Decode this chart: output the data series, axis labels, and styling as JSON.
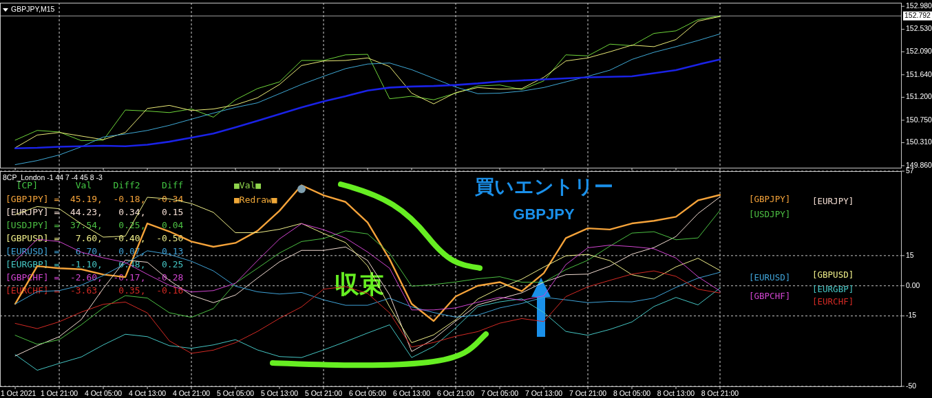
{
  "chart_data": [
    {
      "type": "line",
      "title": "GBPJPY,M15",
      "tick_labels": "y",
      "categories": [
        "1 Oct 2021",
        null,
        "1 Oct 21:00",
        null,
        "4 Oct 05:00",
        null,
        "4 Oct 13:00",
        null,
        "4 Oct 21:00",
        null,
        "5 Oct 05:00",
        null,
        "5 Oct 13:00",
        null,
        "5 Oct 21:00",
        null,
        "6 Oct 05:00",
        null,
        "6 Oct 13:00",
        null,
        "6 Oct 21:00",
        null,
        "7 Oct 05:00",
        null,
        "7 Oct 13:00",
        null,
        "7 Oct 21:00",
        null,
        "8 Oct 05:00",
        null,
        "8 Oct 13:00",
        null,
        "8 Oct 21:00",
        null,
        null,
        null,
        null,
        null,
        null,
        null,
        null
      ],
      "ylim": [
        149.82,
        153.05
      ],
      "yticks": [
        {
          "value": 152.98,
          "label": "152.980"
        },
        {
          "value": 152.53,
          "label": "152.530"
        },
        {
          "value": 152.09,
          "label": "152.090"
        },
        {
          "value": 151.64,
          "label": "151.640"
        },
        {
          "value": 151.2,
          "label": "151.200"
        },
        {
          "value": 150.75,
          "label": "150.750"
        },
        {
          "value": 150.31,
          "label": "150.310"
        },
        {
          "value": 149.86,
          "label": "149.860"
        }
      ],
      "ref_lines": [
        {
          "axis": "y",
          "value": 152.792,
          "label": "152.792",
          "color": "#a0a0a0"
        },
        {
          "axis": "x",
          "value": "1 Oct 21:00",
          "color": "#d0d0d0",
          "line_style": "dashed"
        },
        {
          "axis": "x",
          "value": "4 Oct 21:00",
          "color": "#d0d0d0",
          "line_style": "dashed"
        },
        {
          "axis": "x",
          "value": "5 Oct 21:00",
          "color": "#d0d0d0",
          "line_style": "dashed"
        },
        {
          "axis": "x",
          "value": "6 Oct 21:00",
          "color": "#d0d0d0",
          "line_style": "dashed"
        },
        {
          "axis": "x",
          "value": "7 Oct 21:00",
          "color": "#d0d0d0",
          "line_style": "dashed"
        },
        {
          "axis": "x",
          "value": "8 Oct 21:00",
          "color": "#d0d0d0",
          "line_style": "dashed"
        }
      ],
      "series": [
        {
          "color": "#6fd63a",
          "values": [
            150.36,
            150.55,
            150.52,
            150.35,
            150.36,
            150.95,
            150.93,
            150.9,
            150.97,
            150.81,
            151.15,
            151.37,
            151.5,
            151.92,
            151.92,
            152.03,
            152.04,
            151.17,
            151.22,
            151.15,
            151.28,
            151.42,
            151.44,
            151.35,
            151.52,
            152.03,
            152.01,
            152.24,
            152.21,
            152.45,
            152.5,
            152.72,
            152.79,
            null,
            null,
            null,
            null,
            null,
            null,
            null,
            null
          ]
        },
        {
          "color": "#ecec78",
          "values": [
            150.21,
            150.46,
            150.51,
            150.44,
            150.37,
            150.51,
            150.98,
            151.04,
            150.94,
            150.97,
            151.05,
            151.19,
            151.45,
            151.82,
            151.91,
            151.92,
            151.97,
            151.8,
            151.28,
            151.07,
            151.29,
            151.39,
            151.36,
            151.37,
            151.59,
            151.91,
            151.97,
            152.09,
            152.22,
            152.19,
            152.33,
            152.69,
            152.78,
            null,
            null,
            null,
            null,
            null,
            null,
            null,
            null
          ]
        },
        {
          "color": "#3fa9d6",
          "values": [
            149.88,
            149.96,
            150.07,
            150.23,
            150.42,
            150.48,
            150.55,
            150.65,
            150.77,
            150.89,
            151.0,
            151.09,
            151.27,
            151.45,
            151.61,
            151.76,
            151.85,
            151.87,
            151.74,
            151.57,
            151.4,
            151.27,
            151.28,
            151.32,
            151.39,
            151.5,
            151.61,
            151.73,
            151.94,
            152.08,
            152.19,
            152.31,
            152.44,
            null,
            null,
            null,
            null,
            null,
            null,
            null,
            null
          ]
        },
        {
          "color": "#1a22e6",
          "values": [
            150.2,
            150.21,
            150.23,
            150.24,
            150.25,
            150.24,
            150.27,
            150.33,
            150.41,
            150.49,
            150.61,
            150.74,
            150.87,
            151.0,
            151.12,
            151.22,
            151.33,
            151.39,
            151.41,
            151.42,
            151.44,
            151.47,
            151.51,
            151.53,
            151.55,
            151.57,
            151.59,
            151.6,
            151.61,
            151.67,
            151.73,
            151.84,
            151.94,
            null,
            null,
            null,
            null,
            null,
            null,
            null,
            null
          ]
        }
      ]
    },
    {
      "type": "line",
      "title": "8CP_London -1 44 7 -4 45 8 -3",
      "categories": [
        "1 Oct 2021",
        null,
        "1 Oct 21:00",
        null,
        "4 Oct 05:00",
        null,
        "4 Oct 13:00",
        null,
        "4 Oct 21:00",
        null,
        "5 Oct 05:00",
        null,
        "5 Oct 13:00",
        null,
        "5 Oct 21:00",
        null,
        "6 Oct 05:00",
        null,
        "6 Oct 13:00",
        null,
        "6 Oct 21:00",
        null,
        "7 Oct 05:00",
        null,
        "7 Oct 13:00",
        null,
        "7 Oct 21:00",
        null,
        "8 Oct 05:00",
        null,
        "8 Oct 13:00",
        null,
        "8 Oct 21:00",
        null,
        null,
        null,
        null,
        null,
        null,
        null,
        null
      ],
      "ylim": [
        -50,
        57
      ],
      "yticks": [
        -50,
        -15,
        {
          "value": 0,
          "label": "0.00"
        },
        15,
        57
      ],
      "grid": "y",
      "ref_lines": [
        {
          "axis": "x",
          "value": "1 Oct 21:00",
          "color": "#d0d0d0",
          "line_style": "dashed"
        },
        {
          "axis": "x",
          "value": "4 Oct 21:00",
          "color": "#d0d0d0",
          "line_style": "dashed"
        },
        {
          "axis": "x",
          "value": "5 Oct 21:00",
          "color": "#d0d0d0",
          "line_style": "dashed"
        },
        {
          "axis": "x",
          "value": "6 Oct 21:00",
          "color": "#d0d0d0",
          "line_style": "dashed"
        },
        {
          "axis": "x",
          "value": "7 Oct 21:00",
          "color": "#d0d0d0",
          "line_style": "dashed"
        },
        {
          "axis": "x",
          "value": "8 Oct 21:00",
          "color": "#d0d0d0",
          "line_style": "dashed"
        }
      ],
      "series": [
        {
          "name": "[GBPJPY]",
          "color": "#f5a33a",
          "values": [
            -9.0,
            9.8,
            8.7,
            8.2,
            5.6,
            4.3,
            31.0,
            27.0,
            22.0,
            19.4,
            21.3,
            27.3,
            37.3,
            50.0,
            45.0,
            41.7,
            31.5,
            13.2,
            -9.0,
            -17.5,
            -5.3,
            0.0,
            1.8,
            -2.7,
            6.3,
            23.7,
            28.6,
            28.0,
            31.0,
            32.3,
            34.3,
            42.5,
            45.2,
            null,
            null,
            null,
            null,
            null,
            null,
            null,
            null
          ]
        },
        {
          "name": "[EURJPY]",
          "color": "#f2dcd2",
          "values": [
            -34.9,
            -29.8,
            -25.3,
            -16.8,
            -1.3,
            12.8,
            11.7,
            2.7,
            -4.7,
            -8.4,
            -4.6,
            3.8,
            11.9,
            17.6,
            17.6,
            19.3,
            12.6,
            -4.6,
            -32.7,
            -26.5,
            -17.6,
            -9.5,
            -6.5,
            -3.5,
            1.8,
            5.5,
            5.8,
            9.8,
            15.7,
            19.0,
            24.5,
            35.9,
            44.2,
            null,
            null,
            null,
            null,
            null,
            null,
            null,
            null
          ]
        },
        {
          "name": "[USDJPY]",
          "color": "#4cc043",
          "values": [
            -24.6,
            -29.1,
            -26.8,
            -19.4,
            -11.0,
            -4.9,
            -6.1,
            -13.4,
            -15.7,
            -11.3,
            1.3,
            8.7,
            16.3,
            22.0,
            23.5,
            27.3,
            25.8,
            16.1,
            -0.2,
            0.6,
            1.9,
            3.5,
            4.5,
            1.8,
            1.8,
            8.0,
            12.7,
            19.7,
            26.2,
            26.9,
            22.9,
            23.8,
            37.5,
            null,
            null,
            null,
            null,
            null,
            null,
            null,
            null
          ]
        },
        {
          "name": "[GBPUSD]",
          "color": "#f0ef8a",
          "values": [
            35.4,
            39.4,
            38.3,
            30.8,
            24.2,
            24.7,
            44.0,
            43.2,
            40.9,
            36.5,
            26.4,
            26.4,
            28.1,
            31.0,
            26.0,
            21.5,
            9.9,
            -10.5,
            -28.3,
            -24.4,
            -16.9,
            -6.6,
            -1.2,
            3.3,
            9.3,
            14.9,
            15.6,
            12.5,
            5.5,
            3.3,
            9.4,
            13.7,
            7.6,
            null,
            null,
            null,
            null,
            null,
            null,
            null,
            null
          ]
        },
        {
          "name": "[EURUSD]",
          "color": "#3fa3d8",
          "values": [
            -9.1,
            -2.9,
            -2.4,
            0.3,
            5.1,
            11.0,
            17.4,
            15.6,
            12.2,
            7.4,
            -0.2,
            -3.0,
            -4.1,
            -3.3,
            -7.0,
            -9.7,
            -9.7,
            -6.2,
            -10.5,
            -13.3,
            -15.6,
            -14.6,
            -11.0,
            -8.8,
            -5.7,
            -7.0,
            -8.4,
            -7.8,
            -8.0,
            -6.1,
            -0.8,
            3.8,
            6.7,
            null,
            null,
            null,
            null,
            null,
            null,
            null,
            null
          ]
        },
        {
          "name": "[EURGBP]",
          "color": "#45c6c4",
          "values": [
            -34.2,
            -42.0,
            -38.6,
            -35.4,
            -29.4,
            -24.1,
            -25.3,
            -29.8,
            -31.1,
            -29.4,
            -26.8,
            -31.9,
            -35.2,
            -35.7,
            -31.9,
            -27.8,
            -23.5,
            -19.4,
            -35.7,
            -30.2,
            -20.9,
            -10.4,
            -8.0,
            -6.5,
            -13.3,
            -22.7,
            -24.6,
            -21.7,
            -18.0,
            -10.3,
            -5.8,
            -9.5,
            -1.1,
            null,
            null,
            null,
            null,
            null,
            null,
            null,
            null
          ]
        },
        {
          "name": "[GBPCHF]",
          "color": "#d245d2",
          "values": [
            12.4,
            23.1,
            22.0,
            16.7,
            13.9,
            11.6,
            5.7,
            0.2,
            -3.1,
            -2.4,
            1.3,
            12.5,
            23.3,
            30.9,
            27.9,
            23.7,
            16.8,
            8.7,
            -12.0,
            -12.0,
            -11.0,
            -8.2,
            -5.7,
            -7.2,
            -5.0,
            10.5,
            18.9,
            20.2,
            19.5,
            18.4,
            13.8,
            4.5,
            -2.6,
            null,
            null,
            null,
            null,
            null,
            null,
            null,
            null
          ]
        },
        {
          "name": "[EURCHF]",
          "color": "#d42a24",
          "values": [
            -18.7,
            -21.3,
            -17.9,
            -13.1,
            -9.2,
            -8.1,
            -13.5,
            -27.4,
            -33.6,
            -32.0,
            -28.3,
            -22.7,
            -16.2,
            -10.5,
            -1.7,
            -0.4,
            -3.8,
            -13.5,
            -30.5,
            -28.2,
            -25.1,
            -22.8,
            -18.6,
            -16.3,
            -17.8,
            -5.4,
            -0.5,
            2.7,
            5.8,
            7.4,
            4.7,
            -1.7,
            -3.6,
            null,
            null,
            null,
            null,
            null,
            null,
            null,
            null
          ]
        },
        {
          "type": "scatter",
          "marker": "circle",
          "color": "#7f9fae",
          "values": [
            null,
            null,
            null,
            null,
            null,
            null,
            null,
            null,
            null,
            null,
            null,
            null,
            null,
            48.1,
            null,
            null,
            null,
            null,
            null,
            null,
            null,
            null,
            null,
            null,
            null,
            null,
            null,
            null,
            null,
            null,
            null,
            null,
            null,
            null,
            null,
            null,
            null,
            null,
            null,
            null,
            null
          ]
        }
      ],
      "annotations": [
        "  [CP]       Val    Diff2    Diff",
        "[GBPJPY] =  45.19,  -0.18,  -0.34",
        "[EURJPY] =  44.23,   0.34,   0.15",
        "[USDJPY] =  37.54,   0.25,   0.04",
        "[GBPUSD] =   7.60,  -0.40,  -0.50",
        "[EURUSD] =   6.70,   0.07,   0.13",
        "[EURGBP] =  -1.10,   0.48,   0.25",
        "[GBPCHF] =  -2.60,  -0.17,  -0.28",
        "[EURCHF] =  -3.63,   0.35,  -0.16",
        "■Val■",
        "■Redraw■",
        "収束",
        "買いエントリー",
        "GBPJPY"
      ]
    }
  ]
}
